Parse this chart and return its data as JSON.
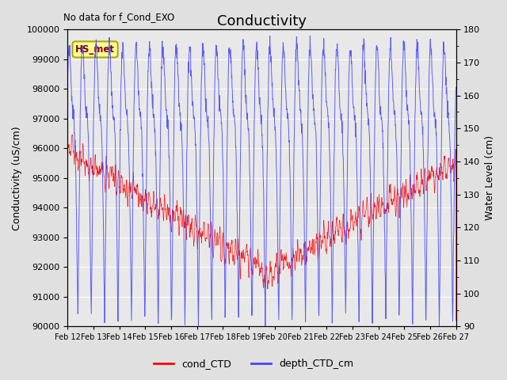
{
  "title": "Conductivity",
  "no_data_label": "No data for f_Cond_EXO",
  "hs_met_label": "HS_met",
  "ylabel_left": "Conductivity (uS/cm)",
  "ylabel_right": "Water Level (cm)",
  "xlabel": "",
  "ylim_left": [
    90000,
    100000
  ],
  "ylim_right": [
    90,
    180
  ],
  "yticks_left": [
    90000,
    91000,
    92000,
    93000,
    94000,
    95000,
    96000,
    97000,
    98000,
    99000,
    100000
  ],
  "yticks_right": [
    90,
    100,
    110,
    120,
    130,
    140,
    150,
    160,
    170,
    180
  ],
  "xtick_labels": [
    "Feb 12",
    "Feb 13",
    "Feb 14",
    "Feb 15",
    "Feb 16",
    "Feb 17",
    "Feb 18",
    "Feb 19",
    "Feb 20",
    "Feb 21",
    "Feb 22",
    "Feb 23",
    "Feb 24",
    "Feb 25",
    "Feb 26",
    "Feb 27"
  ],
  "cond_color": "#ff0000",
  "depth_color": "#4444ff",
  "fig_bg_color": "#e0e0e0",
  "plot_bg_color": "#e8e8e8",
  "legend_labels": [
    "cond_CTD",
    "depth_CTD_cm"
  ],
  "title_fontsize": 13,
  "label_fontsize": 9,
  "tick_fontsize": 8,
  "grid_color": "#ffffff",
  "hs_met_facecolor": "#ffff99",
  "hs_met_edgecolor": "#aaaa00"
}
